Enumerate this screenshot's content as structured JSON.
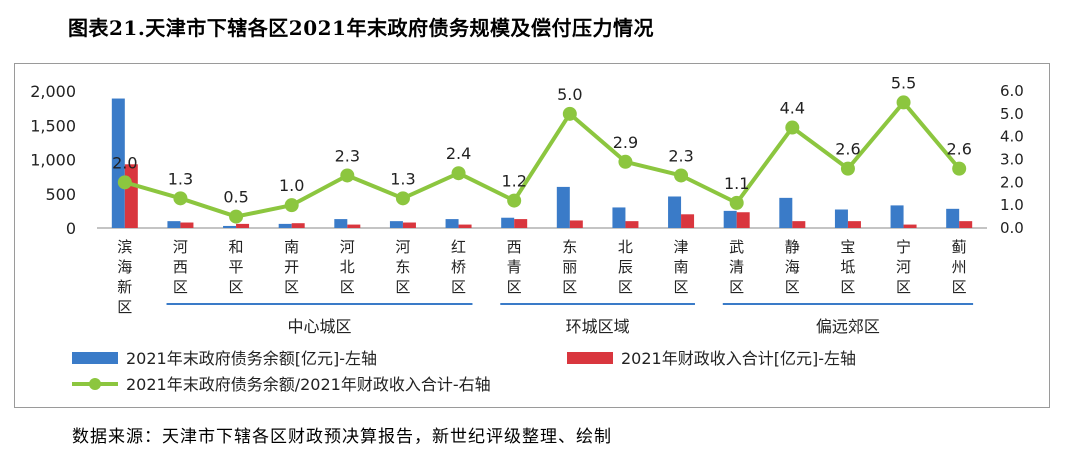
{
  "title": "图表21.天津市下辖各区2021年末政府债务规模及偿付压力情况",
  "source": "数据来源：天津市下辖各区财政预决算报告，新世纪评级整理、绘制",
  "colors": {
    "debt": "#3a7bc8",
    "revenue": "#d9363e",
    "ratio": "#8cc63f",
    "group_line": "#3a7bc8",
    "axis": "#888888"
  },
  "chart_data": {
    "type": "bar",
    "categories": [
      "滨海新区",
      "河西区",
      "和平区",
      "南开区",
      "河北区",
      "河东区",
      "红桥区",
      "西青区",
      "东丽区",
      "北辰区",
      "津南区",
      "武清区",
      "静海区",
      "宝坻区",
      "宁河区",
      "蓟州区"
    ],
    "groups": [
      {
        "label": "中心城区",
        "from": 1,
        "to": 6
      },
      {
        "label": "环城区域",
        "from": 7,
        "to": 10
      },
      {
        "label": "偏远郊区",
        "from": 11,
        "to": 15
      }
    ],
    "series": [
      {
        "name": "2021年末政府债务余额[亿元]-左轴",
        "type": "bar",
        "axis": "left",
        "values": [
          1890,
          100,
          30,
          60,
          130,
          100,
          130,
          150,
          600,
          300,
          460,
          250,
          440,
          270,
          330,
          280
        ]
      },
      {
        "name": "2021年财政收入合计[亿元]-左轴",
        "type": "bar",
        "axis": "left",
        "values": [
          930,
          80,
          60,
          70,
          50,
          80,
          50,
          130,
          110,
          100,
          200,
          230,
          100,
          100,
          50,
          100
        ]
      },
      {
        "name": "2021年末政府债务余额/2021年财政收入合计-右轴",
        "type": "line",
        "axis": "right",
        "values": [
          2.0,
          1.3,
          0.5,
          1.0,
          2.3,
          1.3,
          2.4,
          1.2,
          5.0,
          2.9,
          2.3,
          1.1,
          4.4,
          2.6,
          5.5,
          2.6
        ],
        "labels": [
          "2.0",
          "1.3",
          "0.5",
          "1.0",
          "2.3",
          "1.3",
          "2.4",
          "1.2",
          "5.0",
          "2.9",
          "2.3",
          "1.1",
          "4.4",
          "2.6",
          "5.5",
          "2.6"
        ]
      }
    ],
    "y_left": {
      "min": 0,
      "max": 2000,
      "ticks": [
        "0",
        "500",
        "1,000",
        "1,500",
        "2,000"
      ]
    },
    "y_right": {
      "min": 0,
      "max": 6,
      "ticks": [
        "0.0",
        "1.0",
        "2.0",
        "3.0",
        "4.0",
        "5.0",
        "6.0"
      ]
    },
    "grid": false,
    "legend_position": "bottom"
  }
}
